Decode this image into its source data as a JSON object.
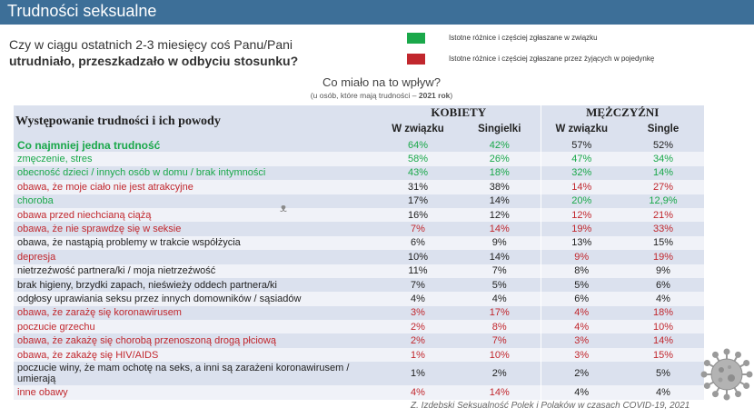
{
  "header": {
    "title": "Trudności seksualne"
  },
  "question": {
    "line1": "Czy w ciągu ostatnich 2-3 miesięcy coś Panu/Pani",
    "line2": "utrudniało, przeszkadzało w odbyciu stosunku?"
  },
  "legend": [
    {
      "text": "Istotne różnice i częściej zgłaszane w związku",
      "color": "#1aa84a"
    },
    {
      "text": "Istotne różnice i częściej zgłaszane przez żyjących w pojedynkę",
      "color": "#c1272d"
    }
  ],
  "subtitle": {
    "main": "Co miało na to wpływ?",
    "note_prefix": "(u osób, które mają trudności – ",
    "note_bold": "2021 rok",
    "note_suffix": ")"
  },
  "watermark": "ᴥ",
  "table": {
    "row_header": "Występowanie trudności i ich powody",
    "groups": [
      "KOBIETY",
      "MĘŻCZYŹNI"
    ],
    "subheaders": [
      "W związku",
      "Singielki",
      "W związku",
      "Single"
    ],
    "rows": [
      {
        "label": "Co najmniej jedna trudność",
        "color": "green",
        "values": [
          "64%",
          "42%",
          "57%",
          "52%"
        ],
        "value_colors": [
          "green",
          "green",
          "dark",
          "dark"
        ]
      },
      {
        "label": "zmęczenie, stres",
        "color": "green",
        "values": [
          "58%",
          "26%",
          "47%",
          "34%"
        ],
        "value_colors": [
          "green",
          "green",
          "green",
          "green"
        ]
      },
      {
        "label": "obecność dzieci / innych osób w domu / brak intymności",
        "color": "green",
        "values": [
          "43%",
          "18%",
          "32%",
          "14%"
        ],
        "value_colors": [
          "green",
          "green",
          "green",
          "green"
        ]
      },
      {
        "label": "obawa, że moje ciało nie jest atrakcyjne",
        "color": "red",
        "values": [
          "31%",
          "38%",
          "14%",
          "27%"
        ],
        "value_colors": [
          "dark",
          "dark",
          "red",
          "red"
        ]
      },
      {
        "label": "choroba",
        "color": "green",
        "values": [
          "17%",
          "14%",
          "20%",
          "12,9%"
        ],
        "value_colors": [
          "dark",
          "dark",
          "green",
          "green"
        ]
      },
      {
        "label": "obawa przed niechcianą ciążą",
        "color": "red",
        "values": [
          "16%",
          "12%",
          "12%",
          "21%"
        ],
        "value_colors": [
          "dark",
          "dark",
          "red",
          "red"
        ]
      },
      {
        "label": "obawa, że nie sprawdzę się w seksie",
        "color": "red",
        "values": [
          "7%",
          "14%",
          "19%",
          "33%"
        ],
        "value_colors": [
          "red",
          "red",
          "red",
          "red"
        ]
      },
      {
        "label": "obawa, że nastąpią problemy w trakcie współżycia",
        "color": "dark",
        "values": [
          "6%",
          "9%",
          "13%",
          "15%"
        ],
        "value_colors": [
          "dark",
          "dark",
          "dark",
          "dark"
        ]
      },
      {
        "label": "depresja",
        "color": "red",
        "values": [
          "10%",
          "14%",
          "9%",
          "19%"
        ],
        "value_colors": [
          "dark",
          "dark",
          "red",
          "red"
        ]
      },
      {
        "label": "nietrzeźwość partnera/ki / moja nietrzeźwość",
        "color": "dark",
        "values": [
          "11%",
          "7%",
          "8%",
          "9%"
        ],
        "value_colors": [
          "dark",
          "dark",
          "dark",
          "dark"
        ]
      },
      {
        "label": "brak higieny, brzydki zapach, nieświeży oddech partnera/ki",
        "color": "dark",
        "values": [
          "7%",
          "5%",
          "5%",
          "6%"
        ],
        "value_colors": [
          "dark",
          "dark",
          "dark",
          "dark"
        ]
      },
      {
        "label": "odgłosy uprawiania seksu przez innych domowników / sąsiadów",
        "color": "dark",
        "values": [
          "4%",
          "4%",
          "6%",
          "4%"
        ],
        "value_colors": [
          "dark",
          "dark",
          "dark",
          "dark"
        ]
      },
      {
        "label": "obawa, że zarażę się koronawirusem",
        "color": "red",
        "values": [
          "3%",
          "17%",
          "4%",
          "18%"
        ],
        "value_colors": [
          "red",
          "red",
          "red",
          "red"
        ]
      },
      {
        "label": "poczucie grzechu",
        "color": "red",
        "values": [
          "2%",
          "8%",
          "4%",
          "10%"
        ],
        "value_colors": [
          "red",
          "red",
          "red",
          "red"
        ]
      },
      {
        "label": "obawa, że zakażę się chorobą przenoszoną drogą płciową",
        "color": "red",
        "values": [
          "2%",
          "7%",
          "3%",
          "14%"
        ],
        "value_colors": [
          "red",
          "red",
          "red",
          "red"
        ]
      },
      {
        "label": "obawa, że zakażę się HIV/AIDS",
        "color": "red",
        "values": [
          "1%",
          "10%",
          "3%",
          "15%"
        ],
        "value_colors": [
          "red",
          "red",
          "red",
          "red"
        ]
      },
      {
        "label": "poczucie winy, że mam ochotę na seks, a inni są zarażeni koronawirusem / umierają",
        "color": "dark",
        "values": [
          "1%",
          "2%",
          "2%",
          "5%"
        ],
        "value_colors": [
          "dark",
          "dark",
          "dark",
          "dark"
        ]
      },
      {
        "label": "inne obawy",
        "color": "red",
        "values": [
          "4%",
          "14%",
          "4%",
          "4%"
        ],
        "value_colors": [
          "red",
          "red",
          "dark",
          "dark"
        ]
      }
    ]
  },
  "footer": "Z. Izdebski  Seksualność Polek i Polaków w czasach COVID-19, 2021",
  "decoration": {
    "icon": "coronavirus-icon"
  }
}
